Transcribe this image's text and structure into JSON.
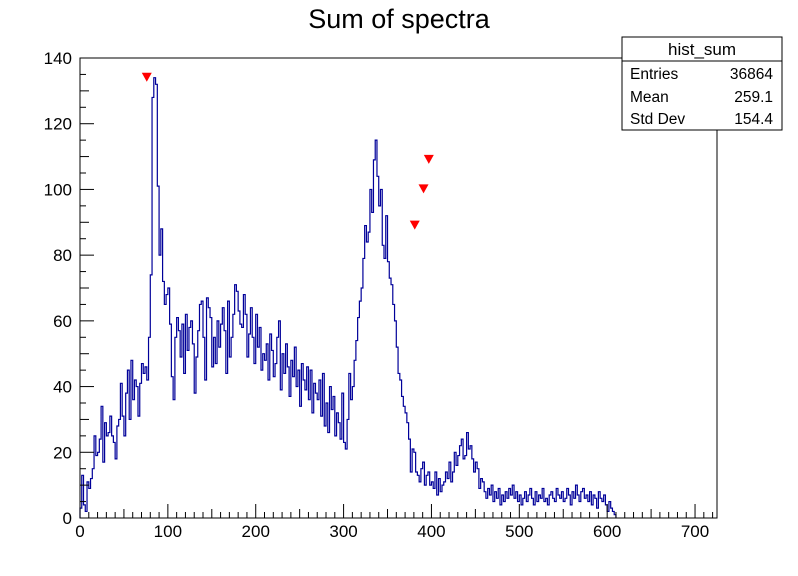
{
  "chart_data": {
    "type": "histogram",
    "title": "Sum of spectra",
    "xlabel": "",
    "ylabel": "",
    "xlim": [
      0,
      725
    ],
    "ylim": [
      0,
      140
    ],
    "x_ticks": [
      0,
      100,
      200,
      300,
      400,
      500,
      600,
      700
    ],
    "y_ticks": [
      0,
      20,
      40,
      60,
      80,
      100,
      120,
      140
    ],
    "grid": false,
    "series_color": "#000099",
    "marker_color": "#ff0000",
    "stats_box": {
      "title": "hist_sum",
      "rows": [
        {
          "label": "Entries",
          "value": "36864"
        },
        {
          "label": "Mean",
          "value": "259.1"
        },
        {
          "label": "Std Dev",
          "value": "154.4"
        }
      ]
    },
    "peak_markers": [
      {
        "x": 76,
        "y": 134
      },
      {
        "x": 381,
        "y": 89
      },
      {
        "x": 391,
        "y": 100
      },
      {
        "x": 397,
        "y": 109
      }
    ],
    "bins": {
      "bin_width": 2,
      "start": 0,
      "counts": [
        3,
        13,
        4,
        2,
        11,
        9,
        12,
        15,
        25,
        19,
        20,
        24,
        34,
        17,
        29,
        25,
        26,
        31,
        25,
        23,
        18,
        28,
        30,
        41,
        31,
        25,
        38,
        45,
        30,
        48,
        36,
        42,
        40,
        31,
        41,
        47,
        44,
        46,
        42,
        55,
        74,
        128,
        134,
        132,
        101,
        80,
        88,
        72,
        65,
        68,
        70,
        59,
        43,
        36,
        55,
        61,
        57,
        49,
        59,
        44,
        62,
        51,
        58,
        60,
        53,
        38,
        49,
        57,
        65,
        66,
        55,
        42,
        67,
        64,
        61,
        46,
        55,
        47,
        60,
        52,
        59,
        64,
        57,
        44,
        66,
        49,
        55,
        62,
        71,
        69,
        63,
        59,
        58,
        68,
        62,
        49,
        56,
        64,
        55,
        47,
        62,
        52,
        58,
        45,
        50,
        48,
        53,
        42,
        56,
        51,
        43,
        47,
        55,
        60,
        39,
        50,
        44,
        53,
        46,
        37,
        48,
        43,
        52,
        40,
        45,
        34,
        47,
        42,
        39,
        46,
        36,
        45,
        32,
        41,
        38,
        36,
        42,
        31,
        44,
        28,
        35,
        26,
        40,
        33,
        37,
        25,
        32,
        29,
        24,
        38,
        23,
        21,
        30,
        44,
        36,
        40,
        48,
        54,
        61,
        66,
        70,
        79,
        89,
        84,
        87,
        100,
        93,
        109,
        115,
        104,
        95,
        100,
        83,
        79,
        92,
        78,
        73,
        71,
        65,
        60,
        52,
        44,
        42,
        37,
        34,
        32,
        29,
        24,
        14,
        21,
        20,
        14,
        13,
        11,
        15,
        17,
        10,
        13,
        14,
        10,
        11,
        9,
        14,
        7,
        12,
        8,
        10,
        11,
        14,
        12,
        17,
        11,
        14,
        20,
        16,
        19,
        22,
        24,
        18,
        19,
        26,
        21,
        22,
        18,
        14,
        17,
        15,
        9,
        12,
        11,
        8,
        6,
        9,
        7,
        10,
        5,
        8,
        6,
        9,
        4,
        7,
        5,
        8,
        6,
        9,
        7,
        10,
        6,
        8,
        5,
        7,
        4,
        6,
        8,
        5,
        7,
        9,
        6,
        4,
        8,
        5,
        7,
        6,
        9,
        5,
        6,
        4,
        7,
        8,
        6,
        5,
        9,
        7,
        6,
        8,
        5,
        6,
        9,
        7,
        4,
        8,
        6,
        10,
        7,
        5,
        8,
        9,
        6,
        7,
        5,
        8,
        4,
        7,
        6,
        3,
        8,
        6,
        5,
        7,
        4,
        2,
        5,
        3,
        2,
        1
      ]
    }
  }
}
